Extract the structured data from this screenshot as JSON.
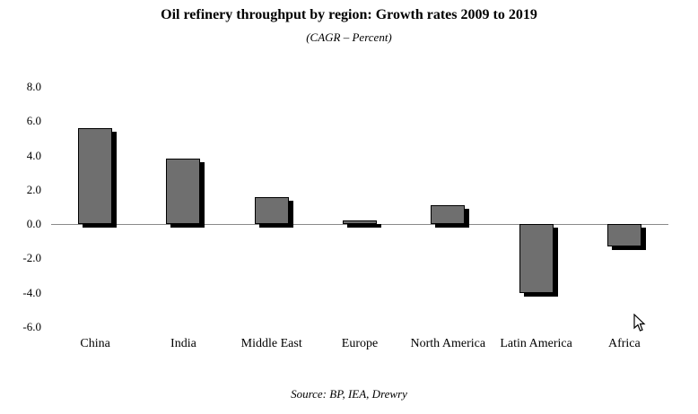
{
  "title": "Oil refinery throughput by region: Growth rates 2009 to 2019",
  "subtitle": "(CAGR – Percent)",
  "source": "Source: BP, IEA, Drewry",
  "chart_data": {
    "type": "bar",
    "title": "Oil refinery throughput by region: Growth rates 2009 to 2019",
    "subtitle": "(CAGR – Percent)",
    "categories": [
      "China",
      "India",
      "Middle East",
      "Europe",
      "North America",
      "Latin America",
      "Africa"
    ],
    "values": [
      5.6,
      3.8,
      1.6,
      0.2,
      1.1,
      -4.0,
      -1.3
    ],
    "xlabel": "",
    "ylabel": "",
    "ylim": [
      -6.0,
      8.0
    ],
    "ytick_step": 2.0,
    "yticks": [
      "8.0",
      "6.0",
      "4.0",
      "2.0",
      "0.0",
      "-2.0",
      "-4.0",
      "-6.0"
    ],
    "grid": false,
    "legend": false,
    "bar_color": "#6f6f6f",
    "shadow_color": "#000000",
    "axis_line_color": "#8a8a8a"
  }
}
